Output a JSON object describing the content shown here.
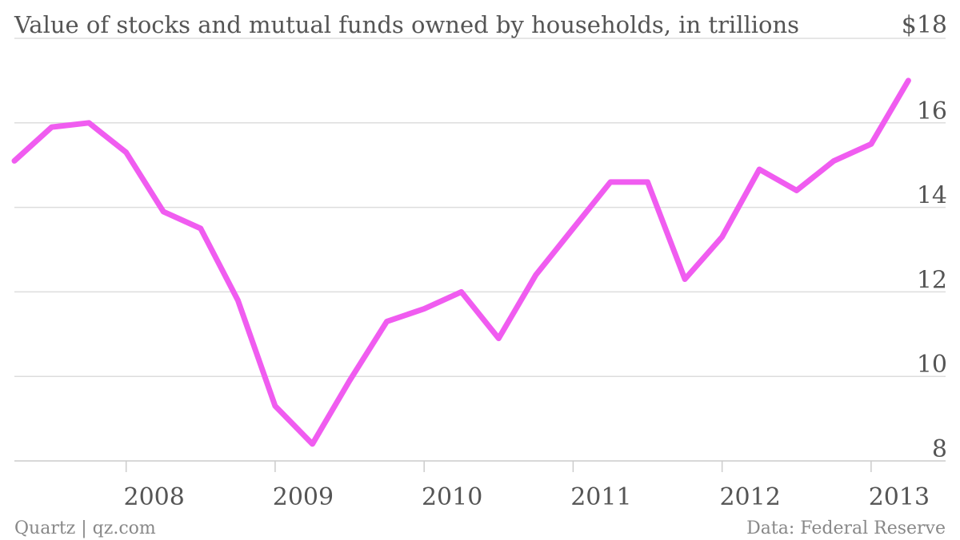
{
  "chart_data": {
    "type": "line",
    "title": "Value of stocks and mutual funds owned by households, in trillions",
    "xlabel": "",
    "ylabel": "",
    "ylim": [
      8,
      18
    ],
    "xlim": [
      2007.25,
      2013.5
    ],
    "yticks": [
      {
        "value": 18,
        "label": "$18"
      },
      {
        "value": 16,
        "label": "16"
      },
      {
        "value": 14,
        "label": "14"
      },
      {
        "value": 12,
        "label": "12"
      },
      {
        "value": 10,
        "label": "10"
      },
      {
        "value": 8,
        "label": "8"
      }
    ],
    "xticks": [
      {
        "value": 2008,
        "label": "2008"
      },
      {
        "value": 2009,
        "label": "2009"
      },
      {
        "value": 2010,
        "label": "2010"
      },
      {
        "value": 2011,
        "label": "2011"
      },
      {
        "value": 2012,
        "label": "2012"
      },
      {
        "value": 2013,
        "label": "2013"
      }
    ],
    "grid": true,
    "legend": "none",
    "colors": {
      "line": "#f05cf0",
      "grid": "#dddddd",
      "text": "#555555",
      "footer": "#888888"
    },
    "series": [
      {
        "x": [
          2007.25,
          2007.5,
          2007.75,
          2008.0,
          2008.25,
          2008.5,
          2008.75,
          2009.0,
          2009.25,
          2009.5,
          2009.75,
          2010.0,
          2010.25,
          2010.5,
          2010.75,
          2011.0,
          2011.25,
          2011.5,
          2011.75,
          2012.0,
          2012.25,
          2012.5,
          2012.75,
          2013.0,
          2013.25
        ],
        "y": [
          15.1,
          15.9,
          16.0,
          15.3,
          13.9,
          13.5,
          11.8,
          9.3,
          8.4,
          9.9,
          11.3,
          11.6,
          12.0,
          10.9,
          12.4,
          13.5,
          14.6,
          14.6,
          12.3,
          13.3,
          14.9,
          14.4,
          15.1,
          15.5,
          17.0
        ]
      }
    ]
  },
  "footer": {
    "source_left": "Quartz | qz.com",
    "source_right": "Data: Federal Reserve"
  }
}
